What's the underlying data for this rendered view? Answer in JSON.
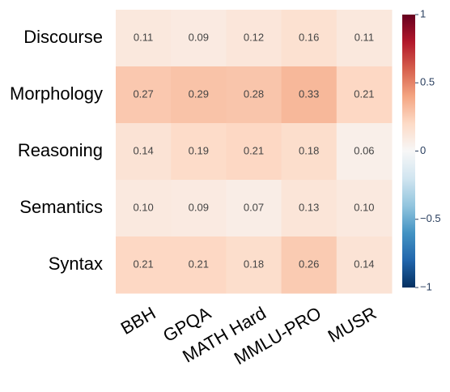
{
  "chart_data": {
    "type": "heatmap",
    "x": [
      "BBH",
      "GPQA",
      "MATH Hard",
      "MMLU-PRO",
      "MUSR"
    ],
    "y": [
      "Discourse",
      "Morphology",
      "Reasoning",
      "Semantics",
      "Syntax"
    ],
    "z": [
      [
        0.11,
        0.09,
        0.12,
        0.16,
        0.11
      ],
      [
        0.27,
        0.29,
        0.28,
        0.33,
        0.21
      ],
      [
        0.14,
        0.19,
        0.21,
        0.18,
        0.06
      ],
      [
        0.1,
        0.09,
        0.07,
        0.13,
        0.1
      ],
      [
        0.21,
        0.21,
        0.18,
        0.26,
        0.14
      ]
    ],
    "value_labels": [
      [
        "0.11",
        "0.09",
        "0.12",
        "0.16",
        "0.11"
      ],
      [
        "0.27",
        "0.29",
        "0.28",
        "0.33",
        "0.21"
      ],
      [
        "0.14",
        "0.19",
        "0.21",
        "0.18",
        "0.06"
      ],
      [
        "0.10",
        "0.09",
        "0.07",
        "0.13",
        "0.10"
      ],
      [
        "0.21",
        "0.21",
        "0.18",
        "0.26",
        "0.14"
      ]
    ],
    "zlim": [
      -1,
      1
    ],
    "zticks": [
      1,
      0.5,
      0,
      {
        "value": -0.5,
        "label": "−0.5"
      },
      {
        "value": -1,
        "label": "−1"
      }
    ],
    "colorscale": [
      "#053061",
      "#2166ac",
      "#4393c3",
      "#92c5de",
      "#d1e5f0",
      "#f7f7f7",
      "#fddbc7",
      "#f4a582",
      "#d6604d",
      "#b2182b",
      "#67001f"
    ]
  }
}
